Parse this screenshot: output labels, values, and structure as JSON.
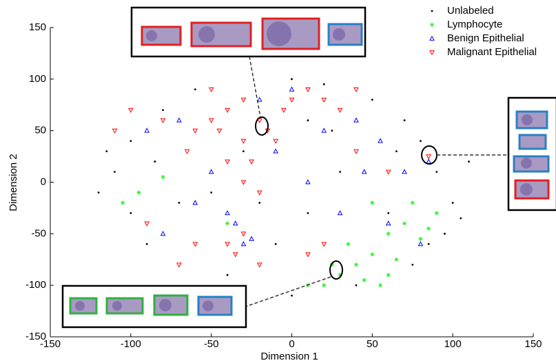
{
  "chart_data": {
    "type": "scatter",
    "x_label": "Dimension 1",
    "y_label": "Dimension 2",
    "xlim": [
      -150,
      150
    ],
    "ylim": [
      -150,
      150
    ],
    "xticks": [
      -150,
      -100,
      -50,
      0,
      50,
      100,
      150
    ],
    "yticks": [
      -150,
      -100,
      -50,
      0,
      50,
      100,
      150
    ],
    "legend": "upper right",
    "series": [
      {
        "name": "Unlabeled",
        "color": "#000000",
        "marker": "dot",
        "x": [
          -120,
          -110,
          -100,
          -90,
          -80,
          -60,
          -40,
          -10,
          10,
          30,
          50,
          70,
          80,
          90,
          100,
          110,
          95,
          60,
          -30,
          0,
          20,
          -70,
          -50,
          40,
          75,
          -100,
          -20,
          10,
          65,
          -85,
          105,
          85,
          -115,
          0,
          25
        ],
        "y": [
          -10,
          10,
          40,
          -60,
          70,
          90,
          -90,
          -60,
          -30,
          10,
          80,
          60,
          40,
          10,
          -20,
          20,
          -50,
          -30,
          30,
          100,
          95,
          -20,
          -10,
          -100,
          -80,
          -30,
          -20,
          60,
          30,
          20,
          -35,
          -60,
          30,
          -110,
          50
        ]
      },
      {
        "name": "Lymphocyte",
        "color": "#33ee33",
        "marker": "star",
        "x": [
          30,
          40,
          50,
          60,
          70,
          80,
          20,
          45,
          55,
          90,
          35,
          65,
          75,
          -95,
          -80,
          -105,
          10,
          -40,
          25,
          60,
          85,
          50
        ],
        "y": [
          -90,
          -80,
          -70,
          -50,
          -40,
          -55,
          -100,
          -95,
          -100,
          -30,
          -60,
          -75,
          -20,
          -10,
          5,
          -20,
          -100,
          -40,
          -80,
          -90,
          -45,
          -20
        ]
      },
      {
        "name": "Benign Epithelial",
        "color": "#0000ff",
        "marker": "triangle-up",
        "x": [
          -70,
          -60,
          -35,
          -30,
          -40,
          -20,
          -10,
          10,
          20,
          40,
          55,
          60,
          80,
          -90,
          -50,
          30,
          85,
          -80,
          0,
          45,
          -25,
          70
        ],
        "y": [
          60,
          -20,
          -40,
          -60,
          -30,
          80,
          30,
          0,
          50,
          60,
          40,
          -40,
          -60,
          50,
          10,
          -30,
          20,
          -50,
          90,
          10,
          -55,
          10
        ]
      },
      {
        "name": "Malignant Epithelial",
        "color": "#ff0000",
        "marker": "triangle-down",
        "x": [
          -60,
          -50,
          -40,
          -30,
          -20,
          -10,
          -30,
          -80,
          -100,
          -110,
          -50,
          -40,
          -30,
          -20,
          -25,
          0,
          10,
          20,
          30,
          40,
          -30,
          -35,
          -40,
          -20,
          10,
          20,
          60,
          -70,
          -60,
          -90,
          85,
          -15,
          -5,
          40,
          -65,
          -45
        ],
        "y": [
          50,
          60,
          70,
          80,
          60,
          40,
          40,
          60,
          70,
          50,
          90,
          20,
          0,
          -10,
          20,
          80,
          90,
          80,
          70,
          90,
          -50,
          -70,
          -60,
          -80,
          -70,
          -60,
          10,
          -80,
          -60,
          -40,
          25,
          50,
          70,
          30,
          30,
          50
        ]
      }
    ]
  }
}
